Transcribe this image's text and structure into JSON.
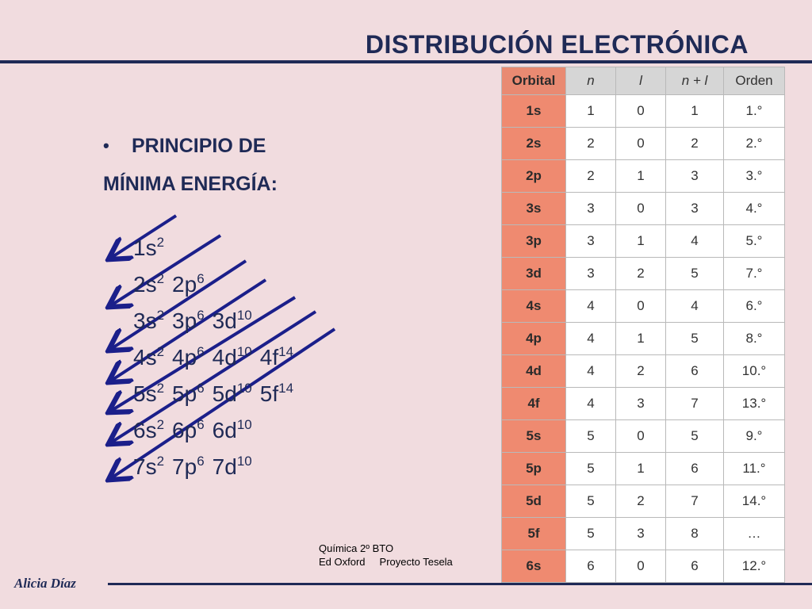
{
  "title": "DISTRIBUCIÓN ELECTRÓNICA",
  "bullet": {
    "line1": "PRINCIPIO DE",
    "line2": "MÍNIMA ENERGÍA:"
  },
  "rows": [
    [
      {
        "t": "1s",
        "e": "2"
      }
    ],
    [
      {
        "t": "2s",
        "e": "2"
      },
      {
        "t": "2p",
        "e": "6"
      }
    ],
    [
      {
        "t": "3s",
        "e": "2"
      },
      {
        "t": "3p",
        "e": "6"
      },
      {
        "t": "3d",
        "e": "10"
      }
    ],
    [
      {
        "t": "4s",
        "e": "2"
      },
      {
        "t": "4p",
        "e": "6"
      },
      {
        "t": "4d",
        "e": "10"
      },
      {
        "t": "4f",
        "e": "14"
      }
    ],
    [
      {
        "t": "5s",
        "e": "2"
      },
      {
        "t": "5p",
        "e": "6"
      },
      {
        "t": "5d",
        "e": "10"
      },
      {
        "t": "5f",
        "e": "14"
      }
    ],
    [
      {
        "t": "6s",
        "e": "2"
      },
      {
        "t": "6p",
        "e": "6"
      },
      {
        "t": "6d",
        "e": "10"
      }
    ],
    [
      {
        "t": "7s",
        "e": "2"
      },
      {
        "t": "7p",
        "e": "6"
      },
      {
        "t": "7d",
        "e": "10"
      }
    ]
  ],
  "table": {
    "headers": [
      "Orbital",
      "n",
      "l",
      "n + l",
      "Orden"
    ],
    "rows": [
      [
        "1s",
        "1",
        "0",
        "1",
        "1.°"
      ],
      [
        "2s",
        "2",
        "0",
        "2",
        "2.°"
      ],
      [
        "2p",
        "2",
        "1",
        "3",
        "3.°"
      ],
      [
        "3s",
        "3",
        "0",
        "3",
        "4.°"
      ],
      [
        "3p",
        "3",
        "1",
        "4",
        "5.°"
      ],
      [
        "3d",
        "3",
        "2",
        "5",
        "7.°"
      ],
      [
        "4s",
        "4",
        "0",
        "4",
        "6.°"
      ],
      [
        "4p",
        "4",
        "1",
        "5",
        "8.°"
      ],
      [
        "4d",
        "4",
        "2",
        "6",
        "10.°"
      ],
      [
        "4f",
        "4",
        "3",
        "7",
        "13.°"
      ],
      [
        "5s",
        "5",
        "0",
        "5",
        "9.°"
      ],
      [
        "5p",
        "5",
        "1",
        "6",
        "11.°"
      ],
      [
        "5d",
        "5",
        "2",
        "7",
        "14.°"
      ],
      [
        "5f",
        "5",
        "3",
        "8",
        "…"
      ],
      [
        "6s",
        "6",
        "0",
        "6",
        "12.°"
      ]
    ]
  },
  "source": {
    "line1": "Química 2º BTO",
    "line2a": "Ed Oxford",
    "line2b": "Proyecto Tesela"
  },
  "author": "Alicia Díaz",
  "colors": {
    "navy": "#1f2a56",
    "arrow": "#1b1f8a",
    "background": "#f1dcdf",
    "orbital_column": "#ef8a70"
  }
}
